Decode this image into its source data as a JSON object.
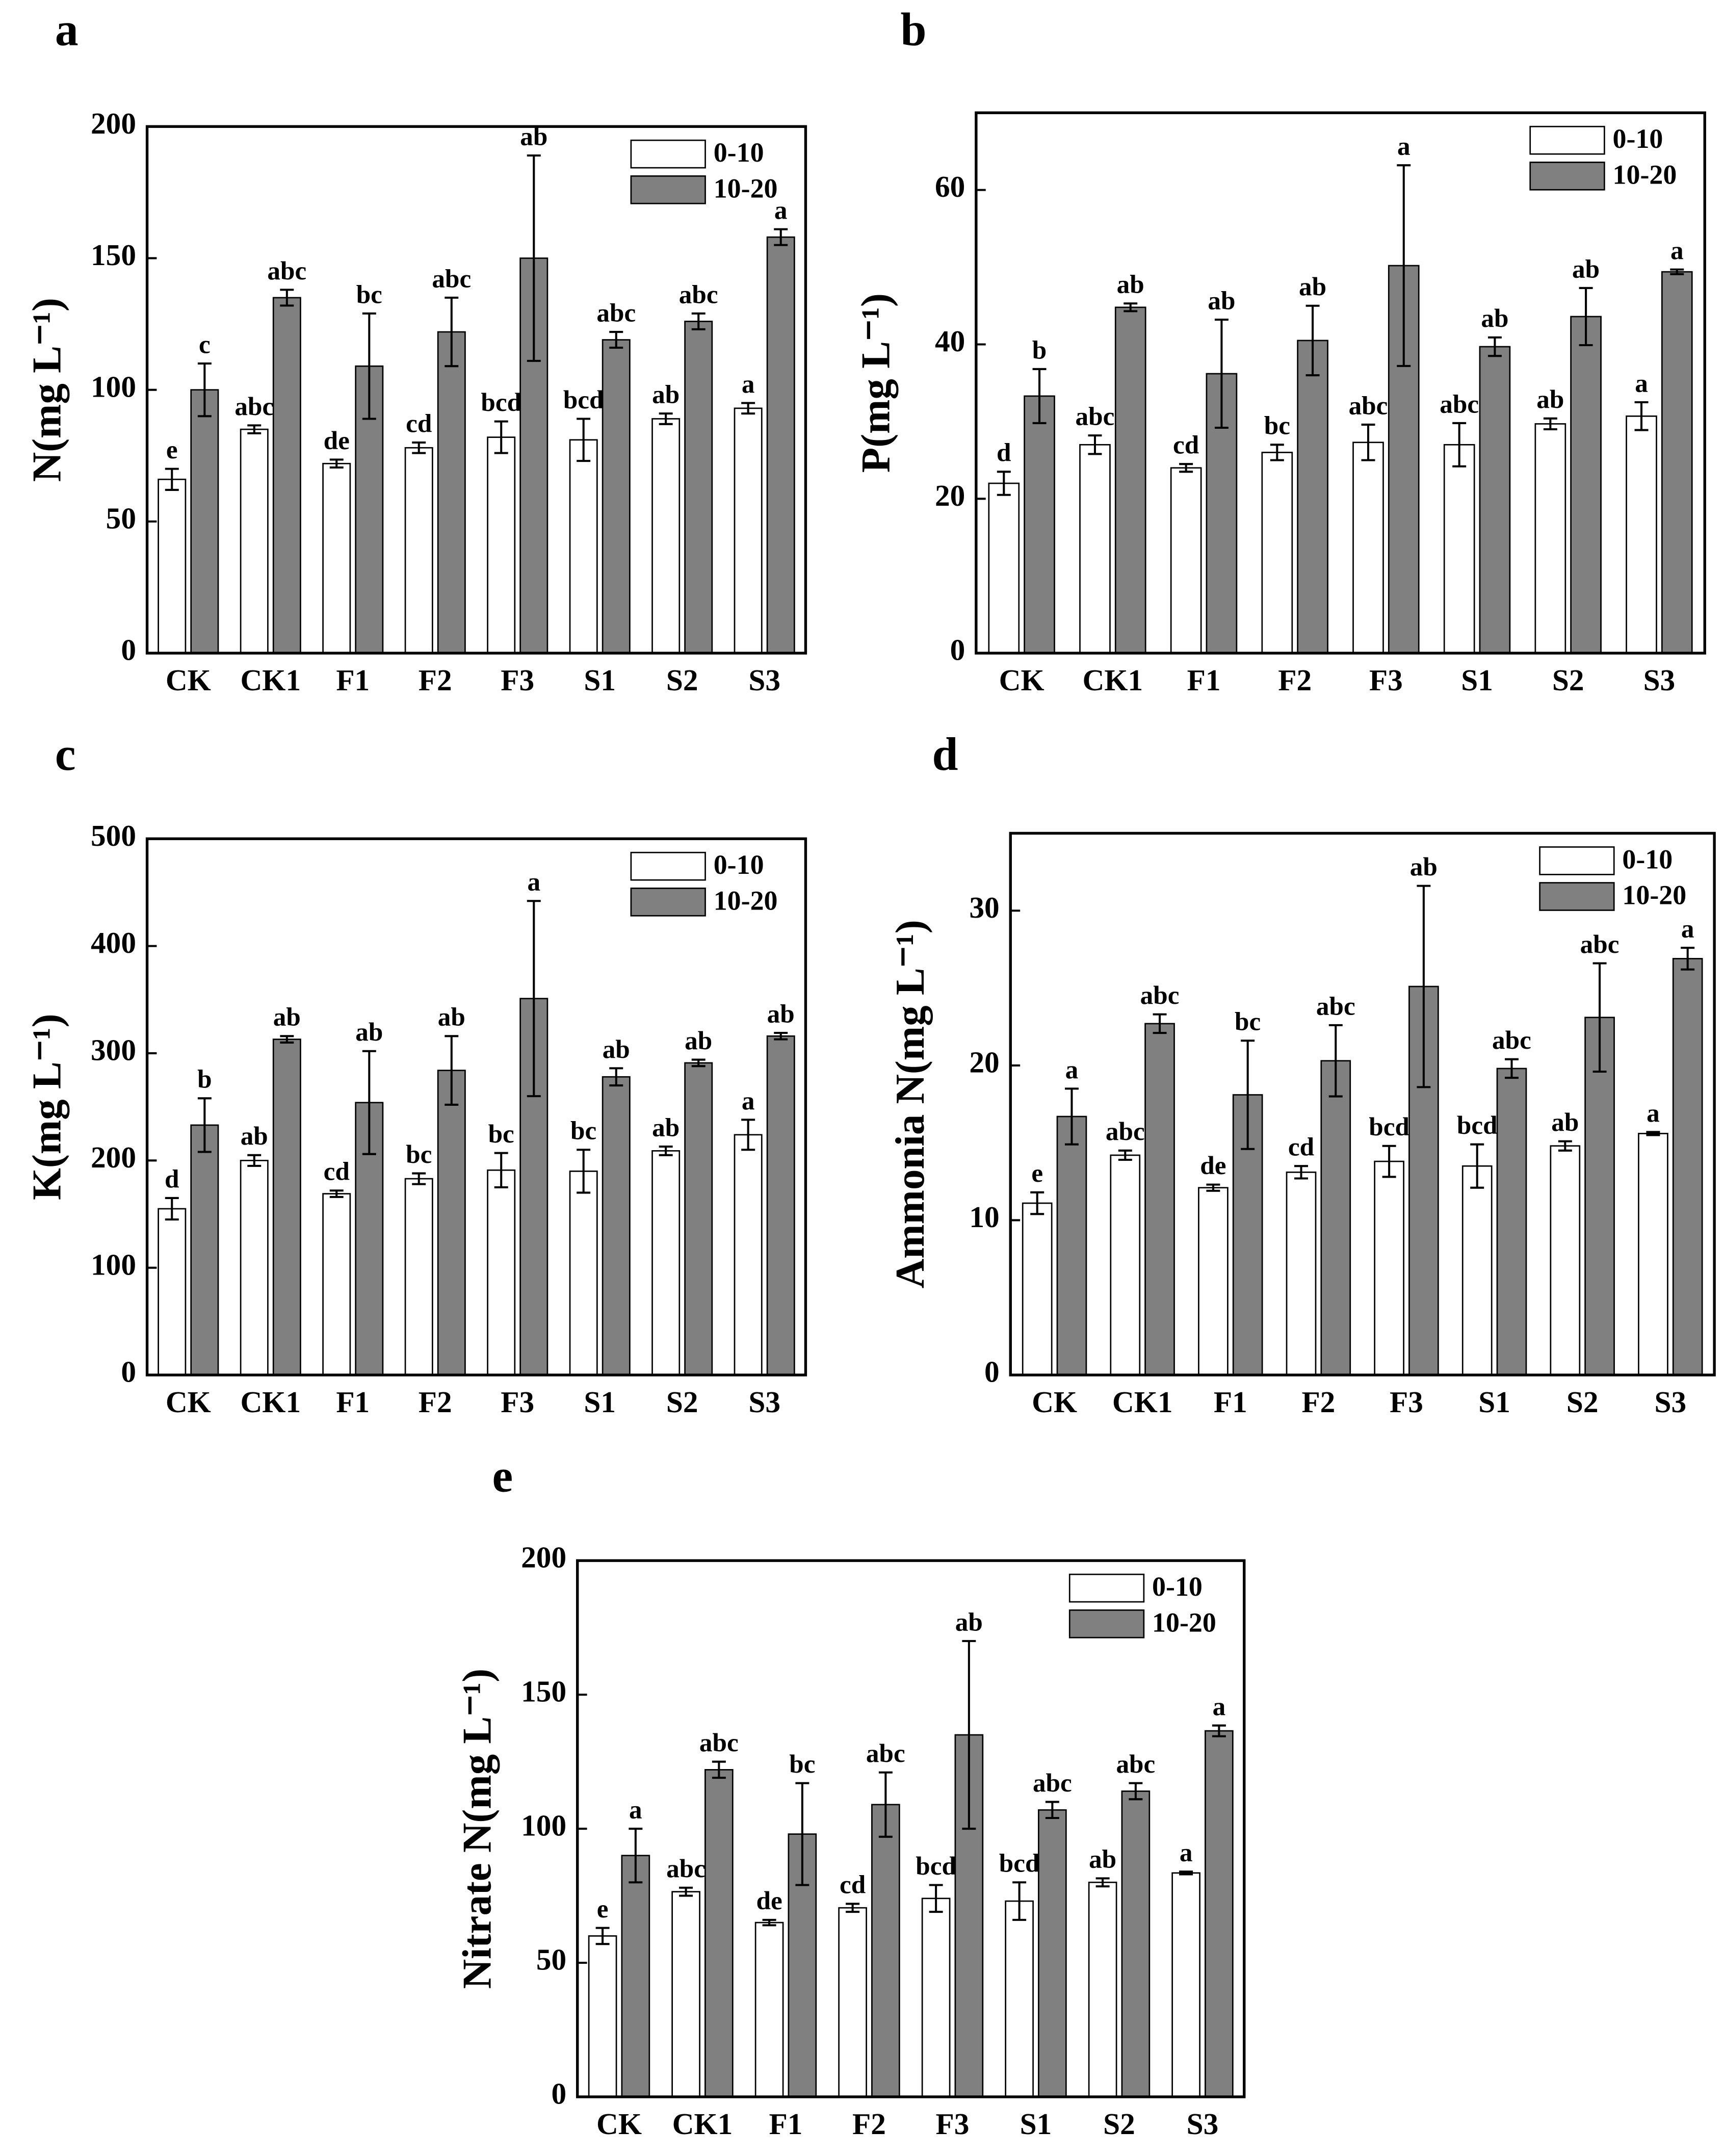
{
  "chart_data": [
    {
      "type": "bar",
      "panel": "a",
      "ylabel": "N(mg L⁻¹)",
      "categories": [
        "CK",
        "CK1",
        "F1",
        "F2",
        "F3",
        "S1",
        "S2",
        "S3"
      ],
      "ylim": [
        0,
        200
      ],
      "yticks": [
        0,
        50,
        100,
        150,
        200
      ],
      "legend": "upper right",
      "series": [
        {
          "name": "0-10",
          "color": "#ffffff",
          "values": [
            66,
            85,
            72,
            78,
            82,
            81,
            89,
            93
          ],
          "errors": [
            4,
            1.5,
            1.5,
            2,
            6,
            8,
            2,
            2
          ],
          "letters": [
            "e",
            "abc",
            "de",
            "cd",
            "bcd",
            "bcd",
            "ab",
            "a"
          ]
        },
        {
          "name": "10-20",
          "color": "#808080",
          "values": [
            100,
            135,
            109,
            122,
            150,
            119,
            126,
            158
          ],
          "errors": [
            10,
            3,
            20,
            13,
            39,
            3,
            3,
            3
          ],
          "letters": [
            "c",
            "abc",
            "bc",
            "abc",
            "ab",
            "abc",
            "abc",
            "a"
          ]
        }
      ]
    },
    {
      "type": "bar",
      "panel": "b",
      "ylabel": "P(mg L⁻¹)",
      "categories": [
        "CK",
        "CK1",
        "F1",
        "F2",
        "F3",
        "S1",
        "S2",
        "S3"
      ],
      "ylim": [
        0,
        70
      ],
      "yticks": [
        0,
        20,
        40,
        60
      ],
      "legend": "upper right",
      "series": [
        {
          "name": "0-10",
          "color": "#ffffff",
          "values": [
            22,
            27,
            24,
            26,
            27.3,
            27,
            29.7,
            30.7
          ],
          "errors": [
            1.5,
            1.2,
            0.5,
            1,
            2.3,
            2.8,
            0.7,
            1.8
          ],
          "letters": [
            "d",
            "abc",
            "cd",
            "bc",
            "abc",
            "abc",
            "ab",
            "a"
          ]
        },
        {
          "name": "10-20",
          "color": "#808080",
          "values": [
            33.3,
            44.8,
            36.2,
            40.5,
            50.2,
            39.7,
            43.6,
            49.4
          ],
          "errors": [
            3.5,
            0.5,
            7,
            4.5,
            13,
            1.2,
            3.7,
            0.3
          ],
          "letters": [
            "b",
            "ab",
            "ab",
            "ab",
            "a",
            "ab",
            "ab",
            "a"
          ]
        }
      ]
    },
    {
      "type": "bar",
      "panel": "c",
      "ylabel": "K(mg L⁻¹)",
      "categories": [
        "CK",
        "CK1",
        "F1",
        "F2",
        "F3",
        "S1",
        "S2",
        "S3"
      ],
      "ylim": [
        0,
        500
      ],
      "yticks": [
        0,
        100,
        200,
        300,
        400,
        500
      ],
      "legend": "upper right",
      "series": [
        {
          "name": "0-10",
          "color": "#ffffff",
          "values": [
            155,
            200,
            169,
            183,
            191,
            190,
            209,
            224
          ],
          "errors": [
            10,
            5,
            3,
            5,
            16,
            20,
            4,
            14
          ],
          "letters": [
            "d",
            "ab",
            "cd",
            "bc",
            "bc",
            "bc",
            "ab",
            "a"
          ]
        },
        {
          "name": "10-20",
          "color": "#808080",
          "values": [
            233,
            313,
            254,
            284,
            351,
            278,
            291,
            316
          ],
          "errors": [
            25,
            3,
            48,
            32,
            91,
            8,
            3,
            3
          ],
          "letters": [
            "b",
            "ab",
            "ab",
            "ab",
            "a",
            "ab",
            "ab",
            "ab"
          ]
        }
      ]
    },
    {
      "type": "bar",
      "panel": "d",
      "ylabel": "Ammonia N(mg L⁻¹)",
      "categories": [
        "CK",
        "CK1",
        "F1",
        "F2",
        "F3",
        "S1",
        "S2",
        "S3"
      ],
      "ylim": [
        0,
        35
      ],
      "yticks": [
        0,
        10,
        20,
        30
      ],
      "legend": "upper right",
      "series": [
        {
          "name": "0-10",
          "color": "#ffffff",
          "values": [
            11.1,
            14.2,
            12.1,
            13.1,
            13.8,
            13.5,
            14.8,
            15.6
          ],
          "errors": [
            0.7,
            0.3,
            0.2,
            0.4,
            1,
            1.4,
            0.3,
            0.1
          ],
          "letters": [
            "e",
            "abc",
            "de",
            "cd",
            "bcd",
            "bcd",
            "ab",
            "a"
          ]
        },
        {
          "name": "10-20",
          "color": "#808080",
          "values": [
            16.7,
            22.7,
            18.1,
            20.3,
            25.1,
            19.8,
            23.1,
            26.9
          ],
          "errors": [
            1.8,
            0.6,
            3.5,
            2.3,
            6.5,
            0.6,
            3.5,
            0.7
          ],
          "letters": [
            "a",
            "abc",
            "bc",
            "abc",
            "ab",
            "abc",
            "abc",
            "a"
          ]
        }
      ]
    },
    {
      "type": "bar",
      "panel": "e",
      "ylabel": "Nitrate N(mg L⁻¹)",
      "categories": [
        "CK",
        "CK1",
        "F1",
        "F2",
        "F3",
        "S1",
        "S2",
        "S3"
      ],
      "ylim": [
        0,
        200
      ],
      "yticks": [
        0,
        50,
        100,
        150,
        200
      ],
      "legend": "upper right",
      "series": [
        {
          "name": "0-10",
          "color": "#ffffff",
          "values": [
            60,
            76.5,
            65,
            70.5,
            74,
            73,
            80,
            83.5
          ],
          "errors": [
            3,
            1.5,
            1,
            1.5,
            5,
            7,
            1.5,
            0.5
          ],
          "letters": [
            "e",
            "abc",
            "de",
            "cd",
            "bcd",
            "bcd",
            "ab",
            "a"
          ]
        },
        {
          "name": "10-20",
          "color": "#808080",
          "values": [
            90,
            122,
            98,
            109,
            135,
            107,
            114,
            136.5
          ],
          "errors": [
            10,
            3,
            19,
            12,
            35,
            3,
            3,
            2
          ],
          "letters": [
            "a",
            "abc",
            "bc",
            "abc",
            "ab",
            "abc",
            "abc",
            "a"
          ]
        }
      ]
    }
  ]
}
